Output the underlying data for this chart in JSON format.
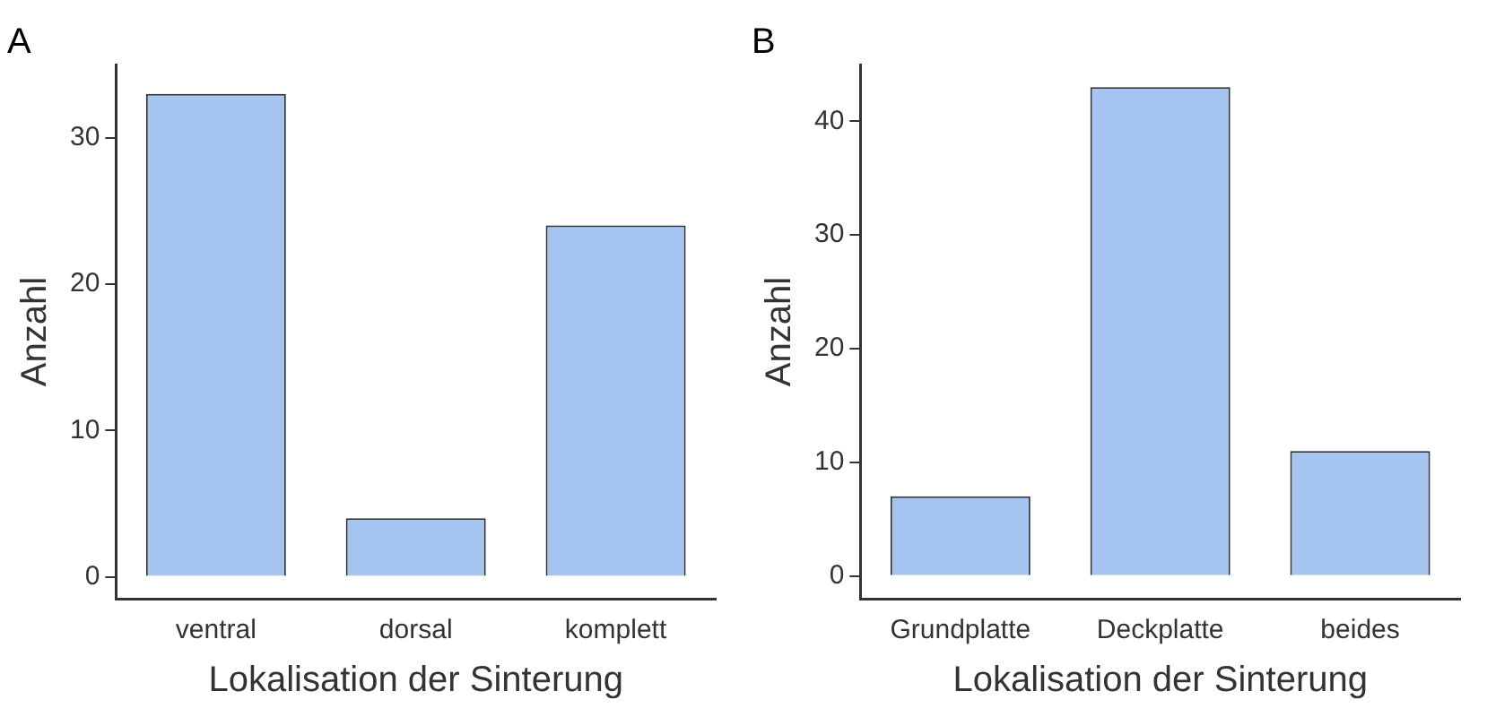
{
  "chart_data": [
    {
      "type": "bar",
      "title": "A",
      "categories": [
        "ventral",
        "dorsal",
        "komplett"
      ],
      "values": [
        33,
        4,
        24
      ],
      "color": "#a6c4f0",
      "xlabel": "Lokalisation der Sinterung",
      "ylabel": "Anzahl",
      "ylim": [
        -1.5,
        35
      ],
      "yticks": [
        0,
        10,
        20,
        30
      ],
      "grid": false,
      "legend": false
    },
    {
      "type": "bar",
      "title": "B",
      "categories": [
        "Grundplatte",
        "Deckplatte",
        "beides"
      ],
      "values": [
        7,
        43,
        11
      ],
      "color": "#a6c4f0",
      "xlabel": "Lokalisation der Sinterung",
      "ylabel": "Anzahl",
      "ylim": [
        -2,
        45
      ],
      "yticks": [
        0,
        10,
        20,
        30,
        40
      ],
      "grid": false,
      "legend": false
    }
  ]
}
